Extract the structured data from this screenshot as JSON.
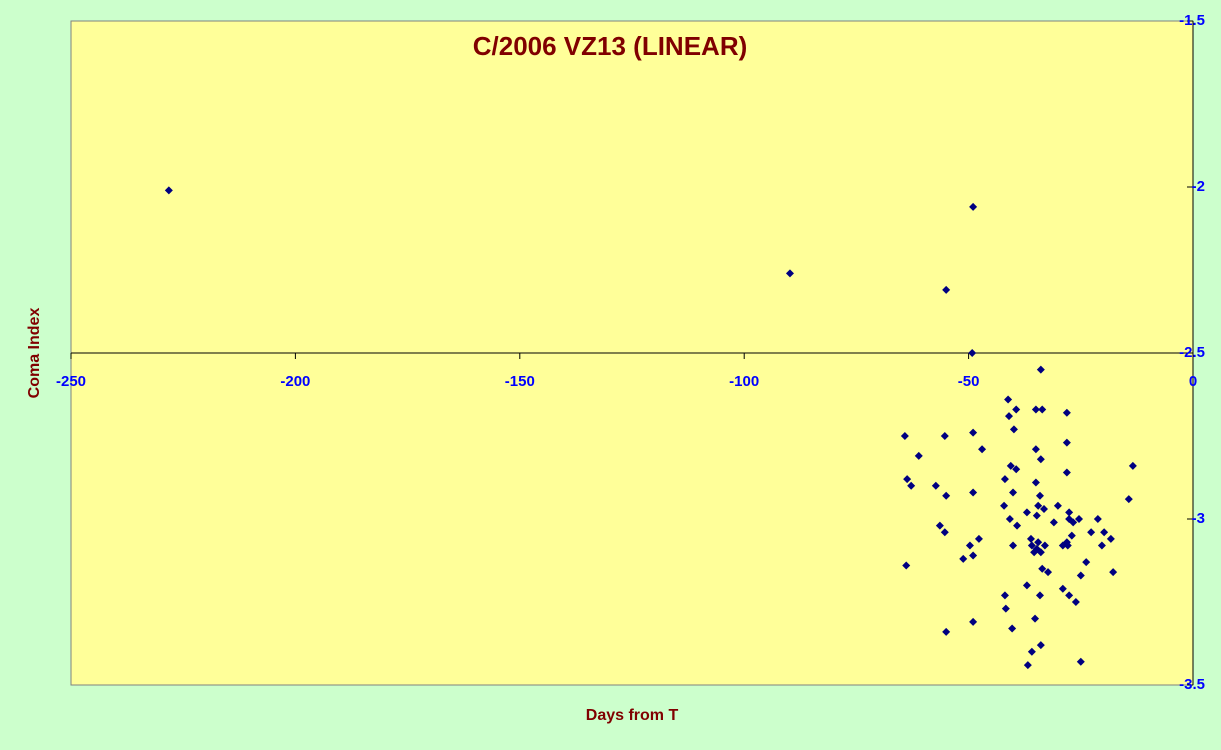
{
  "chart_data": {
    "type": "scatter",
    "title": "C/2006 VZ13 (LINEAR)",
    "x_label": "Days from T",
    "y_label": "Coma Index",
    "xlim": [
      -250,
      0
    ],
    "xticks": [
      -250,
      -200,
      -150,
      -100,
      -50,
      0
    ],
    "ylim": [
      -3.5,
      -1.5
    ],
    "yticks": [
      -1.5,
      -2,
      -2.5,
      -3,
      -3.5
    ],
    "y_inverted": true,
    "y_axis_side": "right",
    "x_axis_crosses": -2.5,
    "series": [
      {
        "color": "#000080",
        "x": [
          -228.2,
          -89.8,
          -49.0,
          -55.0,
          -49.2,
          -33.9,
          -41.2,
          -39.4,
          -41.0,
          -35.0,
          -33.6,
          -28.1,
          -39.9,
          -64.2,
          -55.3,
          -49.0,
          -28.1,
          -47.0,
          -35.0,
          -61.1,
          -33.9,
          -40.6,
          -39.4,
          -13.4,
          -28.1,
          -63.7,
          -41.9,
          -35.0,
          -62.8,
          -57.3,
          -49.0,
          -40.1,
          -55.0,
          -34.1,
          -14.3,
          -42.1,
          -34.5,
          -33.2,
          -30.1,
          -37.0,
          -27.6,
          -27.6,
          -21.2,
          -34.8,
          -40.8,
          -31.0,
          -26.7,
          -25.4,
          -39.2,
          -56.4,
          -55.3,
          -22.7,
          -19.8,
          -27.0,
          -36.1,
          -18.3,
          -47.7,
          -34.5,
          -27.9,
          -40.1,
          -33.0,
          -20.3,
          -49.7,
          -35.9,
          -29.0,
          -35.4,
          -33.9,
          -34.8,
          -28.1,
          -51.2,
          -49.0,
          -23.8,
          -33.6,
          -32.3,
          -25.0,
          -17.8,
          -63.9,
          -37.0,
          -29.0,
          -41.9,
          -27.6,
          -34.1,
          -26.1,
          -41.7,
          -35.2,
          -49.0,
          -40.3,
          -55.0,
          -33.9,
          -35.9,
          -25.0,
          -36.8
        ],
        "values": [
          -2.01,
          -2.26,
          -2.06,
          -2.31,
          -2.5,
          -2.55,
          -2.64,
          -2.67,
          -2.69,
          -2.67,
          -2.67,
          -2.68,
          -2.73,
          -2.75,
          -2.75,
          -2.74,
          -2.77,
          -2.79,
          -2.79,
          -2.81,
          -2.82,
          -2.84,
          -2.85,
          -2.84,
          -2.86,
          -2.88,
          -2.88,
          -2.89,
          -2.9,
          -2.9,
          -2.92,
          -2.92,
          -2.93,
          -2.93,
          -2.94,
          -2.96,
          -2.96,
          -2.97,
          -2.96,
          -2.98,
          -2.98,
          -3.0,
          -3.0,
          -2.99,
          -3.0,
          -3.01,
          -3.01,
          -3.0,
          -3.02,
          -3.02,
          -3.04,
          -3.04,
          -3.04,
          -3.05,
          -3.06,
          -3.06,
          -3.06,
          -3.07,
          -3.08,
          -3.08,
          -3.08,
          -3.08,
          -3.08,
          -3.08,
          -3.08,
          -3.1,
          -3.1,
          -3.09,
          -3.07,
          -3.12,
          -3.11,
          -3.13,
          -3.15,
          -3.16,
          -3.17,
          -3.16,
          -3.14,
          -3.2,
          -3.21,
          -3.23,
          -3.23,
          -3.23,
          -3.25,
          -3.27,
          -3.3,
          -3.31,
          -3.33,
          -3.34,
          -3.38,
          -3.4,
          -3.43,
          -3.44
        ]
      }
    ]
  }
}
